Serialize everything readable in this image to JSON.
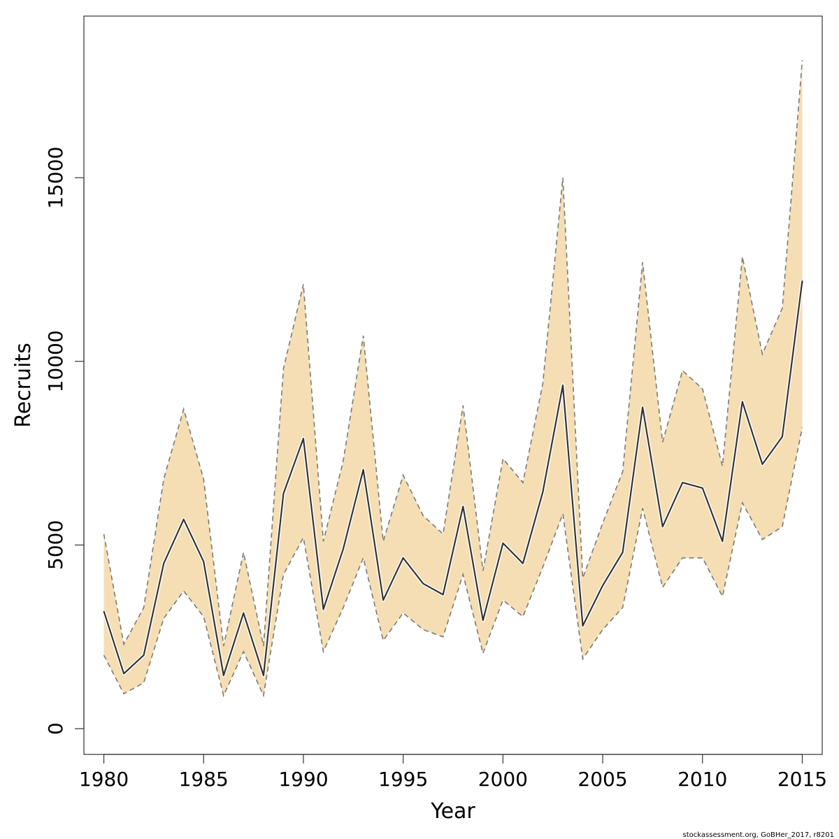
{
  "chart_data": {
    "type": "line",
    "title": "",
    "xlabel": "Year",
    "ylabel": "Recruits",
    "xlim": [
      1979,
      2016
    ],
    "ylim": [
      -700,
      19400
    ],
    "x_ticks": [
      1980,
      1985,
      1990,
      1995,
      2000,
      2005,
      2010,
      2015
    ],
    "y_ticks": [
      0,
      5000,
      10000,
      15000
    ],
    "grid": false,
    "legend": "none",
    "band_fill_color": "#f5deb3",
    "band_edge_color": "#7a7a7a",
    "line_color": "#333333",
    "x": [
      1980,
      1981,
      1982,
      1983,
      1984,
      1985,
      1986,
      1987,
      1988,
      1989,
      1990,
      1991,
      1992,
      1993,
      1994,
      1995,
      1996,
      1997,
      1998,
      1999,
      2000,
      2001,
      2002,
      2003,
      2004,
      2005,
      2006,
      2007,
      2008,
      2009,
      2010,
      2011,
      2012,
      2013,
      2014,
      2015
    ],
    "series": [
      {
        "role": "estimate",
        "values": [
          3200,
          1500,
          2000,
          4500,
          5700,
          4550,
          1450,
          3150,
          1450,
          6400,
          7900,
          3250,
          4900,
          7050,
          3500,
          4650,
          3950,
          3650,
          6050,
          2950,
          5050,
          4500,
          6450,
          9350,
          2800,
          3900,
          4800,
          8750,
          5500,
          6700,
          6550,
          5100,
          8900,
          7200,
          7950,
          12200
        ]
      },
      {
        "role": "upper",
        "values": [
          5300,
          2300,
          3300,
          6800,
          8700,
          6800,
          2250,
          4800,
          2250,
          9800,
          12100,
          5100,
          7300,
          10700,
          5100,
          6900,
          5800,
          5300,
          8800,
          4300,
          7350,
          6700,
          9400,
          15000,
          4100,
          5600,
          7000,
          12700,
          7800,
          9750,
          9250,
          7150,
          12850,
          10200,
          11450,
          18200
        ]
      },
      {
        "role": "lower",
        "values": [
          2000,
          950,
          1250,
          3000,
          3750,
          3050,
          900,
          2100,
          900,
          4200,
          5200,
          2100,
          3300,
          4650,
          2400,
          3150,
          2700,
          2500,
          4200,
          2050,
          3500,
          3050,
          4400,
          5850,
          1900,
          2700,
          3300,
          6000,
          3850,
          4650,
          4650,
          3600,
          6150,
          5150,
          5500,
          8200
        ]
      }
    ]
  },
  "footer": {
    "note": "stockassessment.org, GoBHer_2017, r8201"
  }
}
